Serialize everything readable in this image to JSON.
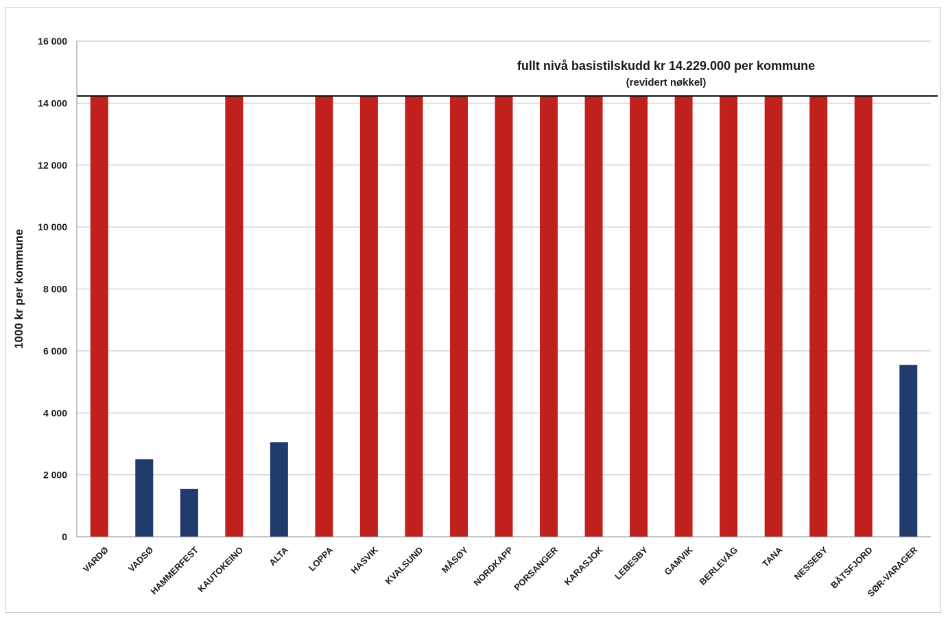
{
  "chart_data": {
    "type": "bar",
    "title": "",
    "xlabel": "",
    "ylabel": "1000 kr per kommune",
    "ylim": [
      0,
      16000
    ],
    "yticks": [
      0,
      2000,
      4000,
      6000,
      8000,
      10000,
      12000,
      14000,
      16000
    ],
    "ytick_labels": [
      "0",
      "2 000",
      "4 000",
      "6 000",
      "8 000",
      "10 000",
      "12 000",
      "14 000",
      "16 000"
    ],
    "grid": true,
    "legend": "none",
    "categories": [
      "VARDØ",
      "VADSØ",
      "HAMMERFEST",
      "KAUTOKEINO",
      "ALTA",
      "LOPPA",
      "HASVIK",
      "KVALSUND",
      "MÅSØY",
      "NORDKAPP",
      "PORSANGER",
      "KARASJOK",
      "LEBESBY",
      "GAMVIK",
      "BERLEVÅG",
      "TANA",
      "NESSEBY",
      "BÅTSFJORD",
      "SØR-VARAGER"
    ],
    "values": [
      14229,
      2500,
      1550,
      14229,
      3050,
      14229,
      14229,
      14229,
      14229,
      14229,
      14229,
      14229,
      14229,
      14229,
      14229,
      14229,
      14229,
      14229,
      5550
    ],
    "bar_colors": [
      "#c0211d",
      "#1f3a6b",
      "#1f3a6b",
      "#c0211d",
      "#1f3a6b",
      "#c0211d",
      "#c0211d",
      "#c0211d",
      "#c0211d",
      "#c0211d",
      "#c0211d",
      "#c0211d",
      "#c0211d",
      "#c0211d",
      "#c0211d",
      "#c0211d",
      "#c0211d",
      "#c0211d",
      "#1f3a6b"
    ],
    "reference_line": {
      "value": 14229,
      "color": "#111111"
    },
    "annotations": [
      "fullt nivå basistilskudd  kr 14.229.000 per kommune",
      "(revidert nøkkel)"
    ]
  }
}
